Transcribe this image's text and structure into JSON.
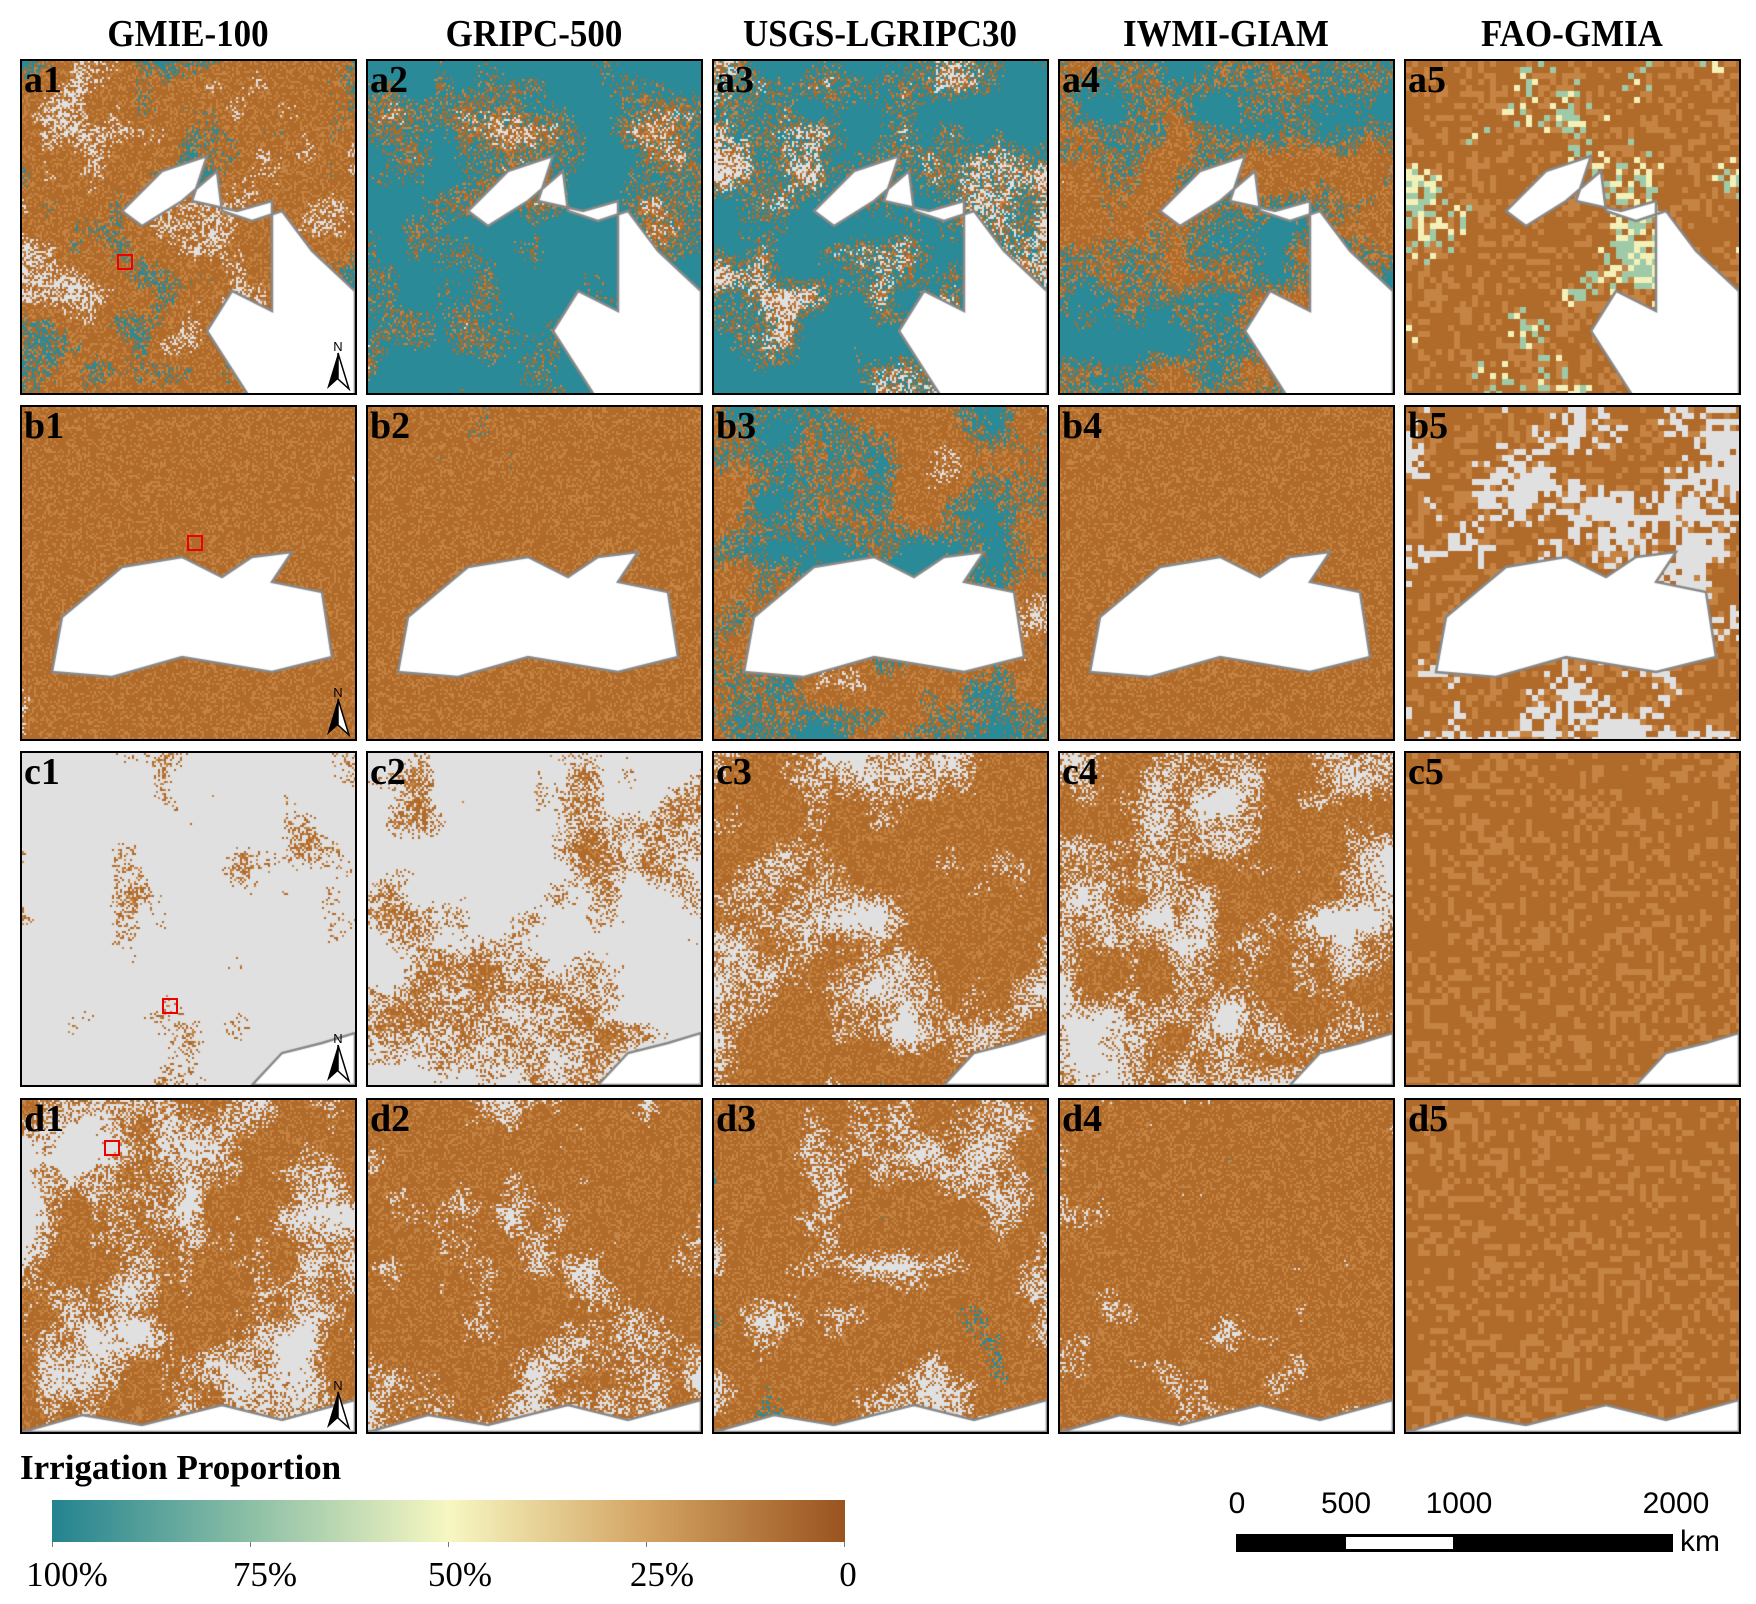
{
  "columns": [
    "GMIE-100",
    "GRIPC-500",
    "USGS-LGRIPC30",
    "IWMI-GIAM",
    "FAO-GMIA"
  ],
  "rows": [
    {
      "labels": [
        "a1",
        "a2",
        "a3",
        "a4",
        "a5"
      ]
    },
    {
      "labels": [
        "b1",
        "b2",
        "b3",
        "b4",
        "b5"
      ]
    },
    {
      "labels": [
        "c1",
        "c2",
        "c3",
        "c4",
        "c5"
      ]
    },
    {
      "labels": [
        "d1",
        "d2",
        "d3",
        "d4",
        "d5"
      ]
    }
  ],
  "north_arrow": {
    "label": "N"
  },
  "legend": {
    "title": "Irrigation Proportion",
    "ticks": [
      "100%",
      "75%",
      "50%",
      "25%",
      "0"
    ],
    "colors": [
      "#23838f",
      "#8cbfa6",
      "#f7f7c2",
      "#d3a463",
      "#9a531f"
    ]
  },
  "scale_bar": {
    "ticks": [
      "0",
      "500",
      "1000",
      "2000"
    ],
    "unit": "km"
  },
  "colors": {
    "no_irrigation_land": "#e0e0e0",
    "water": "#ffffff",
    "coastline": "#888888",
    "highlight_box": "#ee0000"
  }
}
